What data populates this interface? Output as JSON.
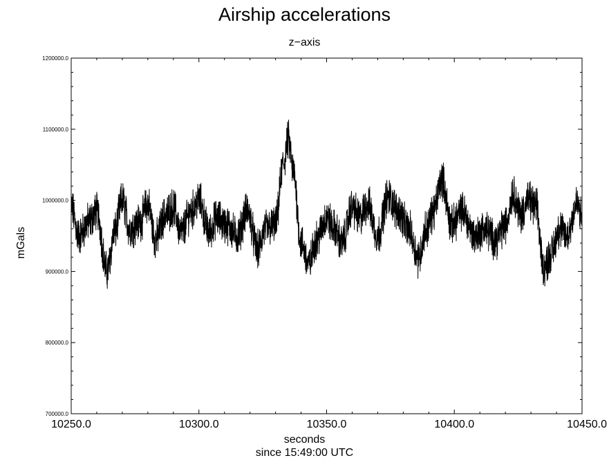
{
  "chart_data": {
    "type": "line",
    "title": "Airship accelerations",
    "subtitle": "z−axis",
    "xlabel": "seconds",
    "xlabel2": "since 15:49:00 UTC",
    "ylabel": "mGals",
    "xlim": [
      10250,
      10450
    ],
    "ylim": [
      700000,
      1200000
    ],
    "x_ticks": [
      10250,
      10300,
      10350,
      10400,
      10450
    ],
    "x_tick_labels": [
      "10250.0",
      "10300.0",
      "10350.0",
      "10400.0",
      "10450.0"
    ],
    "y_ticks": [
      700000,
      800000,
      900000,
      1000000,
      1100000,
      1200000
    ],
    "y_tick_labels": [
      "700000.0",
      "800000.0",
      "900000.0",
      "1000000.0",
      "1100000.0",
      "1200000.0"
    ],
    "grid": false,
    "line_color": "#000000",
    "series": [
      {
        "x": [
          10250,
          10253,
          10257,
          10260,
          10264,
          10267,
          10270,
          10273,
          10277,
          10280,
          10283,
          10287,
          10290,
          10293,
          10297,
          10300,
          10304,
          10307,
          10311,
          10315,
          10319,
          10323,
          10326,
          10330,
          10333,
          10335,
          10337,
          10340,
          10343,
          10346,
          10350,
          10353,
          10356,
          10360,
          10363,
          10366,
          10370,
          10374,
          10378,
          10382,
          10386,
          10389,
          10392,
          10395,
          10399,
          10403,
          10408,
          10412,
          10416,
          10420,
          10423,
          10426,
          10429,
          10432,
          10435,
          10438,
          10441,
          10444,
          10448,
          10450
        ],
        "y": [
          990000,
          950000,
          970000,
          985000,
          900000,
          955000,
          1000000,
          960000,
          970000,
          995000,
          945000,
          980000,
          990000,
          955000,
          985000,
          1000000,
          955000,
          975000,
          965000,
          950000,
          985000,
          930000,
          960000,
          965000,
          1050000,
          1085000,
          1040000,
          940000,
          910000,
          945000,
          975000,
          960000,
          940000,
          990000,
          975000,
          995000,
          950000,
          1005000,
          985000,
          960000,
          920000,
          960000,
          985000,
          1030000,
          965000,
          985000,
          950000,
          960000,
          945000,
          965000,
          1010000,
          980000,
          1000000,
          990000,
          905000,
          925000,
          960000,
          950000,
          995000,
          975000
        ]
      }
    ]
  }
}
